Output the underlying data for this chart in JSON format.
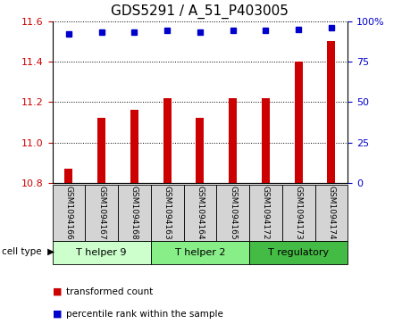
{
  "title": "GDS5291 / A_51_P403005",
  "samples": [
    "GSM1094166",
    "GSM1094167",
    "GSM1094168",
    "GSM1094163",
    "GSM1094164",
    "GSM1094165",
    "GSM1094172",
    "GSM1094173",
    "GSM1094174"
  ],
  "bar_values": [
    10.87,
    11.12,
    11.16,
    11.22,
    11.12,
    11.22,
    11.22,
    11.4,
    11.5
  ],
  "percentile_values": [
    92,
    93,
    93,
    94,
    93,
    94,
    94,
    95,
    96
  ],
  "ylim_left": [
    10.8,
    11.6
  ],
  "ylim_right": [
    0,
    100
  ],
  "yticks_left": [
    10.8,
    11.0,
    11.2,
    11.4,
    11.6
  ],
  "yticks_right": [
    0,
    25,
    50,
    75,
    100
  ],
  "bar_color": "#cc0000",
  "dot_color": "#0000cc",
  "background_color": "#ffffff",
  "grid_color": "#000000",
  "cell_types": [
    {
      "label": "T helper 9",
      "start": 0,
      "end": 3,
      "color": "#ccffcc"
    },
    {
      "label": "T helper 2",
      "start": 3,
      "end": 6,
      "color": "#88ee88"
    },
    {
      "label": "T regulatory",
      "start": 6,
      "end": 9,
      "color": "#44bb44"
    }
  ],
  "xlabel_cell_type": "cell type",
  "title_fontsize": 11,
  "tick_fontsize": 8,
  "bar_width": 0.25
}
